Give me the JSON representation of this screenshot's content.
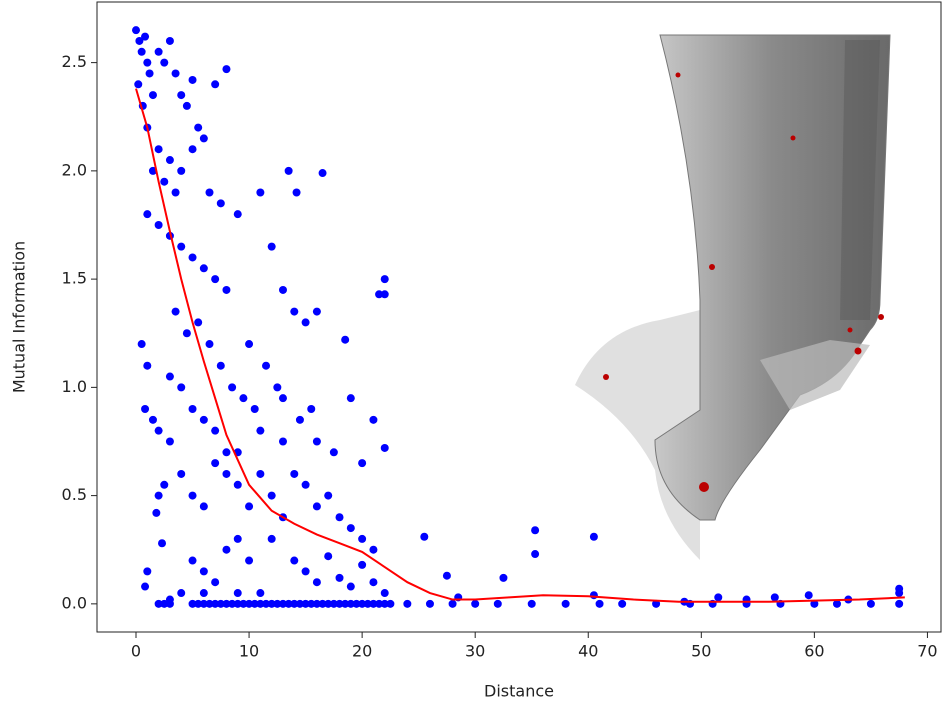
{
  "chart_data": {
    "type": "scatter",
    "xlabel": "Distance",
    "ylabel": "Mutual Information",
    "xlim": [
      -3.45,
      71.2
    ],
    "ylim": [
      -0.13,
      2.78
    ],
    "xticks": [
      0,
      10,
      20,
      30,
      40,
      50,
      60,
      70
    ],
    "yticks": [
      {
        "value": 0,
        "label": "0.0"
      },
      0.5,
      {
        "value": 1,
        "label": "1.0"
      },
      1.5,
      {
        "value": 2,
        "label": "2.0"
      },
      2.5
    ],
    "series": [
      {
        "type": "scatter",
        "color": "#0000ff",
        "x": [
          2,
          2.5,
          3,
          5,
          5.5,
          6,
          6.5,
          7,
          7.5,
          8,
          8.5,
          9,
          9.5,
          10,
          10.5,
          11,
          11.5,
          12,
          12.5,
          13,
          13.5,
          14,
          14.5,
          15,
          15.5,
          16,
          16.5,
          17,
          17.5,
          18,
          18.5,
          19,
          19.5,
          20,
          20.5,
          21,
          21.5,
          22,
          22.5,
          24,
          26,
          28,
          30,
          32,
          35,
          38,
          41,
          43,
          46,
          49,
          51,
          54,
          57,
          60,
          62,
          65,
          67.5,
          25.5,
          28.5,
          27.5,
          32.5,
          35.3,
          35.3,
          40.5,
          40.5,
          51.5,
          56.5,
          59.5,
          67.5,
          67.5,
          48.5,
          54,
          63,
          0,
          0.3,
          0.5,
          0.8,
          1,
          1.2,
          0.2,
          0.6,
          1.5,
          2,
          2.5,
          3,
          3.5,
          4,
          4.5,
          1,
          2,
          3,
          1.5,
          2.5,
          3.5,
          4,
          5,
          5.5,
          6,
          5,
          7,
          8,
          1,
          2,
          3,
          4,
          5,
          6,
          7,
          8,
          9,
          6.5,
          7.5,
          0.5,
          1,
          0.8,
          1.5,
          2,
          3,
          2.5,
          1.8,
          2.3,
          1,
          0.8,
          3.5,
          4.5,
          5.5,
          6.5,
          7.5,
          8.5,
          9.5,
          4,
          5,
          6,
          7,
          8,
          9,
          10,
          11,
          12,
          5,
          6,
          7,
          8,
          9,
          10,
          11,
          12,
          13,
          14,
          15,
          16,
          11.5,
          12.5,
          13.5,
          14.2,
          16.5,
          10,
          10.5,
          11,
          13,
          14,
          15,
          16,
          17,
          18,
          19,
          20,
          21,
          14,
          15,
          16,
          17,
          18,
          19,
          20,
          21,
          22,
          18.5,
          21.5,
          22,
          22,
          19,
          20,
          21,
          22,
          17.5,
          15.5,
          16,
          13,
          14.5,
          12,
          13,
          11,
          9,
          3,
          4,
          6,
          2,
          3,
          4,
          5,
          6,
          7,
          8,
          9
        ],
        "y": [
          0,
          0,
          0,
          0,
          0,
          0,
          0,
          0,
          0,
          0,
          0,
          0,
          0,
          0,
          0,
          0,
          0,
          0,
          0,
          0,
          0,
          0,
          0,
          0,
          0,
          0,
          0,
          0,
          0,
          0,
          0,
          0,
          0,
          0,
          0,
          0,
          0,
          0,
          0,
          0,
          0,
          0,
          0,
          0,
          0,
          0,
          0,
          0,
          0,
          0,
          0,
          0,
          0,
          0,
          0,
          0,
          0,
          0.31,
          0.03,
          0.13,
          0.12,
          0.34,
          0.23,
          0.31,
          0.04,
          0.03,
          0.03,
          0.04,
          0.07,
          0.05,
          0.01,
          0.02,
          0.02,
          2.65,
          2.6,
          2.55,
          2.62,
          2.5,
          2.45,
          2.4,
          2.3,
          2.35,
          2.55,
          2.5,
          2.6,
          2.45,
          2.35,
          2.3,
          2.2,
          2.1,
          2.05,
          2.0,
          1.95,
          1.9,
          2.0,
          2.1,
          2.2,
          2.15,
          2.42,
          2.4,
          2.47,
          1.8,
          1.75,
          1.7,
          1.65,
          1.6,
          1.55,
          1.5,
          1.45,
          1.8,
          1.9,
          1.85,
          1.2,
          1.1,
          0.9,
          0.85,
          0.8,
          0.75,
          0.55,
          0.42,
          0.28,
          0.15,
          0.08,
          1.35,
          1.25,
          1.3,
          1.2,
          1.1,
          1.0,
          0.95,
          0.6,
          0.5,
          0.45,
          0.65,
          0.7,
          0.55,
          0.45,
          0.6,
          0.5,
          0.2,
          0.15,
          0.1,
          0.25,
          0.3,
          0.2,
          1.9,
          1.65,
          1.45,
          1.35,
          1.3,
          1.35,
          1.1,
          1.0,
          2.0,
          1.9,
          1.99,
          1.2,
          0.9,
          0.8,
          0.75,
          0.6,
          0.55,
          0.45,
          0.5,
          0.4,
          0.35,
          0.3,
          0.25,
          0.2,
          0.15,
          0.1,
          0.22,
          0.12,
          0.08,
          0.18,
          0.1,
          0.05,
          1.22,
          1.43,
          1.5,
          1.43,
          0.95,
          0.65,
          0.85,
          0.72,
          0.7,
          0.9,
          0.75,
          0.95,
          0.85,
          0.3,
          0.4,
          0.05,
          0.05,
          0.02,
          0.05,
          0.05,
          0.5,
          1.05,
          1.0,
          0.9,
          0.85,
          0.8,
          0.6,
          0.7
        ]
      },
      {
        "type": "line",
        "color": "#ff0000",
        "x": [
          0,
          1,
          2,
          3,
          4,
          5,
          6,
          7,
          8,
          10,
          12,
          14,
          16,
          18,
          20,
          22,
          24,
          26,
          28,
          30,
          33,
          36,
          40,
          44,
          48,
          52,
          56,
          60,
          64,
          68
        ],
        "y": [
          2.38,
          2.2,
          1.95,
          1.72,
          1.5,
          1.3,
          1.12,
          0.95,
          0.78,
          0.55,
          0.43,
          0.37,
          0.32,
          0.28,
          0.24,
          0.17,
          0.1,
          0.05,
          0.02,
          0.02,
          0.03,
          0.04,
          0.035,
          0.02,
          0.01,
          0.01,
          0.01,
          0.015,
          0.02,
          0.03
        ]
      }
    ]
  }
}
